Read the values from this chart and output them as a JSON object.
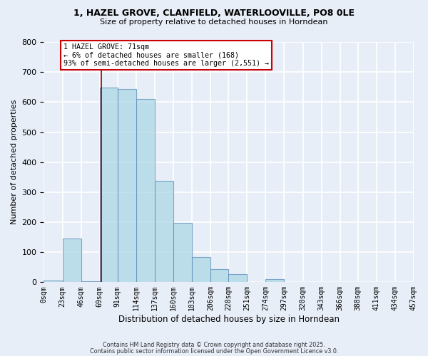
{
  "title1": "1, HAZEL GROVE, CLANFIELD, WATERLOOVILLE, PO8 0LE",
  "title2": "Size of property relative to detached houses in Horndean",
  "xlabel": "Distribution of detached houses by size in Horndean",
  "ylabel": "Number of detached properties",
  "bar_edges": [
    0,
    23,
    46,
    69,
    91,
    114,
    137,
    160,
    183,
    206,
    228,
    251,
    274,
    297,
    320,
    343,
    366,
    388,
    411,
    434,
    457
  ],
  "bar_heights": [
    5,
    145,
    3,
    648,
    643,
    610,
    337,
    198,
    83,
    43,
    26,
    0,
    11,
    0,
    0,
    0,
    0,
    0,
    0,
    0
  ],
  "bar_color": "#add8e6",
  "bar_edge_color": "#5b8db8",
  "bar_alpha": 0.75,
  "tick_labels": [
    "0sqm",
    "23sqm",
    "46sqm",
    "69sqm",
    "91sqm",
    "114sqm",
    "137sqm",
    "160sqm",
    "183sqm",
    "206sqm",
    "228sqm",
    "251sqm",
    "274sqm",
    "297sqm",
    "320sqm",
    "343sqm",
    "366sqm",
    "388sqm",
    "411sqm",
    "434sqm",
    "457sqm"
  ],
  "ylim": [
    0,
    800
  ],
  "yticks": [
    0,
    100,
    200,
    300,
    400,
    500,
    600,
    700,
    800
  ],
  "property_size": 71,
  "property_line_color": "#8b0000",
  "annotation_title": "1 HAZEL GROVE: 71sqm",
  "annotation_line1": "← 6% of detached houses are smaller (168)",
  "annotation_line2": "93% of semi-detached houses are larger (2,551) →",
  "annotation_box_facecolor": "#ffffff",
  "annotation_box_edgecolor": "#cc0000",
  "footer1": "Contains HM Land Registry data © Crown copyright and database right 2025.",
  "footer2": "Contains public sector information licensed under the Open Government Licence v3.0.",
  "bg_color": "#e8eef8",
  "grid_color": "#ffffff"
}
